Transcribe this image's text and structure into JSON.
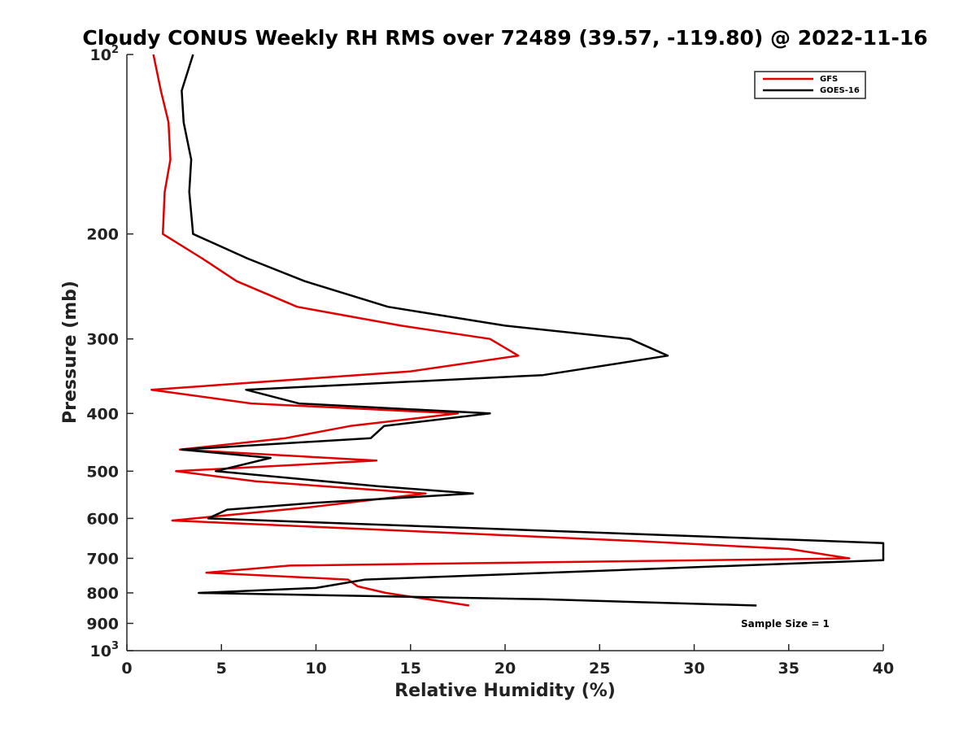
{
  "chart_data": {
    "type": "line",
    "title": "Cloudy CONUS Weekly RH RMS over 72489 (39.57, -119.80) @ 2022-11-16",
    "xlabel": "Relative Humidity (%)",
    "ylabel": "Pressure (mb)",
    "xlim": [
      0,
      40
    ],
    "ylim": [
      100,
      1000
    ],
    "y_scale": "log",
    "y_reversed": true,
    "grid": false,
    "legend_position": "top-right",
    "x_ticks": [
      "0",
      "5",
      "10",
      "15",
      "20",
      "25",
      "30",
      "35",
      "40"
    ],
    "y_ticks": [
      {
        "value": 100,
        "base": "10",
        "exp": "2"
      },
      {
        "value": 200,
        "label": "200"
      },
      {
        "value": 300,
        "label": "300"
      },
      {
        "value": 400,
        "label": "400"
      },
      {
        "value": 500,
        "label": "500"
      },
      {
        "value": 600,
        "label": "600"
      },
      {
        "value": 700,
        "label": "700"
      },
      {
        "value": 800,
        "label": "800"
      },
      {
        "value": 900,
        "label": "900"
      },
      {
        "value": 1000,
        "base": "10",
        "exp": "3"
      }
    ],
    "series": [
      {
        "name": "GFS",
        "color": "#e00000",
        "points": [
          [
            1.4,
            100
          ],
          [
            1.8,
            115
          ],
          [
            2.2,
            130
          ],
          [
            2.3,
            150
          ],
          [
            2.0,
            170
          ],
          [
            1.9,
            200
          ],
          [
            4.0,
            220
          ],
          [
            5.8,
            240
          ],
          [
            9.0,
            265
          ],
          [
            14.5,
            285
          ],
          [
            19.2,
            300
          ],
          [
            20.7,
            320
          ],
          [
            15.0,
            340
          ],
          [
            1.3,
            365
          ],
          [
            6.6,
            385
          ],
          [
            17.5,
            400
          ],
          [
            11.8,
            420
          ],
          [
            8.4,
            440
          ],
          [
            2.8,
            460
          ],
          [
            13.2,
            480
          ],
          [
            2.6,
            500
          ],
          [
            6.8,
            520
          ],
          [
            15.8,
            545
          ],
          [
            9.6,
            575
          ],
          [
            2.4,
            605
          ],
          [
            27.0,
            655
          ],
          [
            35.0,
            675
          ],
          [
            38.2,
            700
          ],
          [
            8.6,
            720
          ],
          [
            4.2,
            740
          ],
          [
            11.7,
            760
          ],
          [
            12.2,
            780
          ],
          [
            13.7,
            800
          ],
          [
            18.1,
            840
          ]
        ]
      },
      {
        "name": "GOES-16",
        "color": "#000000",
        "points": [
          [
            3.5,
            100
          ],
          [
            2.9,
            115
          ],
          [
            3.0,
            130
          ],
          [
            3.4,
            150
          ],
          [
            3.3,
            170
          ],
          [
            3.5,
            200
          ],
          [
            6.4,
            220
          ],
          [
            9.4,
            240
          ],
          [
            13.8,
            265
          ],
          [
            20.0,
            285
          ],
          [
            26.6,
            300
          ],
          [
            28.6,
            320
          ],
          [
            22.0,
            345
          ],
          [
            6.3,
            365
          ],
          [
            9.1,
            385
          ],
          [
            19.2,
            400
          ],
          [
            13.6,
            420
          ],
          [
            12.9,
            440
          ],
          [
            2.9,
            460
          ],
          [
            7.6,
            475
          ],
          [
            4.7,
            500
          ],
          [
            13.3,
            530
          ],
          [
            18.3,
            545
          ],
          [
            9.9,
            565
          ],
          [
            5.3,
            580
          ],
          [
            4.3,
            600
          ],
          [
            40.0,
            660
          ],
          [
            40.0,
            705
          ],
          [
            12.6,
            760
          ],
          [
            10.0,
            785
          ],
          [
            3.8,
            800
          ],
          [
            22.0,
            820
          ],
          [
            33.3,
            840
          ]
        ]
      }
    ],
    "annotation": "Sample Size = 1"
  }
}
